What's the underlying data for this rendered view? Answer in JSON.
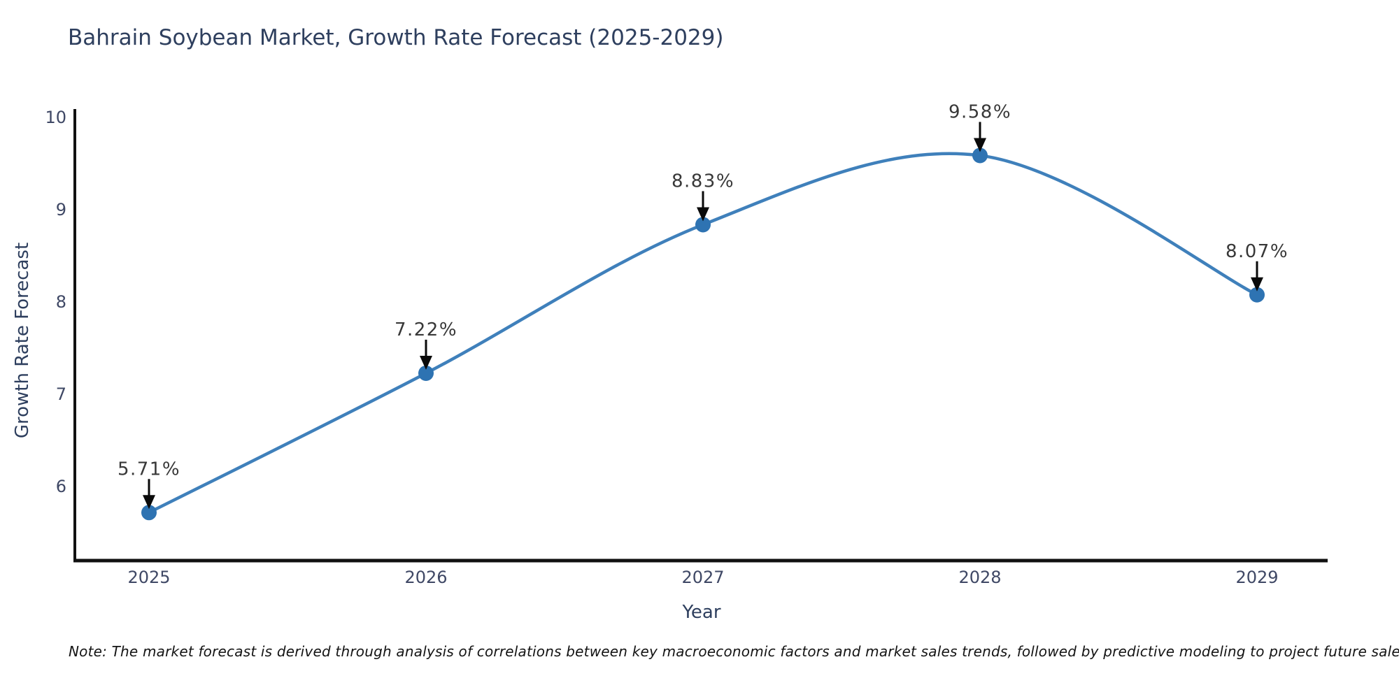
{
  "title": "Bahrain Soybean Market, Growth Rate Forecast (2025-2029)",
  "note": "Note: The market forecast is derived through analysis of correlations between key macroeconomic factors and market sales trends, followed by predictive modeling to project future sales",
  "chart_data": {
    "type": "line",
    "title": "Bahrain Soybean Market, Growth Rate Forecast (2025-2029)",
    "xlabel": "Year",
    "ylabel": "Growth Rate Forecast",
    "x": [
      2025,
      2026,
      2027,
      2028,
      2029
    ],
    "series": [
      {
        "name": "Growth Rate Forecast",
        "values": [
          5.71,
          7.22,
          8.83,
          9.58,
          8.07
        ]
      }
    ],
    "point_labels": [
      "5.71%",
      "7.22%",
      "8.83%",
      "9.58%",
      "8.07%"
    ],
    "x_tick_labels": [
      "2025",
      "2026",
      "2027",
      "2028",
      "2029"
    ],
    "y_ticks": [
      6,
      7,
      8,
      9,
      10
    ],
    "ylim": [
      5.2,
      10.05
    ],
    "xlim": [
      2024.73,
      2029.27
    ],
    "grid": false,
    "legend": "none",
    "smooth": true,
    "colors": {
      "line": "#3f80bb",
      "marker": "#2e73b2",
      "spine": "#111111",
      "annotation_text": "#383838",
      "annotation_arrow": "#0a0a0a",
      "tick_label": "#3f4865",
      "axis_title": "#2e3f5e"
    }
  }
}
